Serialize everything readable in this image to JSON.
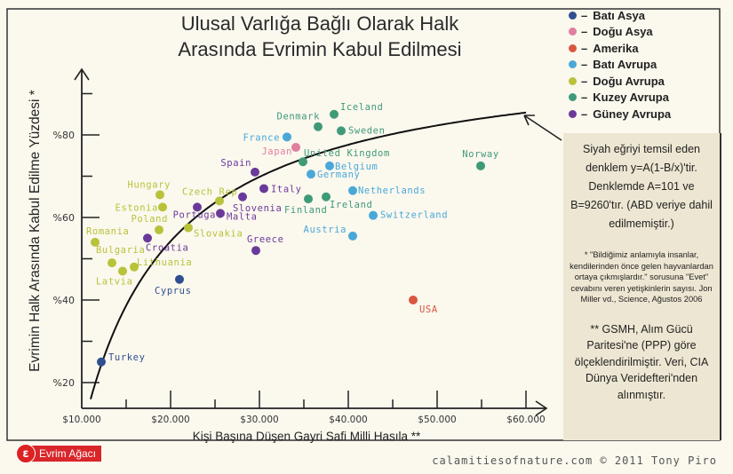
{
  "title_line1": "Ulusal Varlığa Bağlı Olarak Halk",
  "title_line2": "Arasında Evrimin Kabul Edilmesi",
  "legend": [
    {
      "key": "bati_asya",
      "label": "Batı Asya",
      "color": "#2f4f8f"
    },
    {
      "key": "dogu_asya",
      "label": "Doğu Asya",
      "color": "#e07fa0"
    },
    {
      "key": "amerika",
      "label": "Amerika",
      "color": "#d9573f"
    },
    {
      "key": "bati_avrupa",
      "label": "Batı Avrupa",
      "color": "#4aa8d8"
    },
    {
      "key": "dogu_avrupa",
      "label": "Doğu Avrupa",
      "color": "#b8c23a"
    },
    {
      "key": "kuzey_avrupa",
      "label": "Kuzey Avrupa",
      "color": "#3f9a78"
    },
    {
      "key": "guney_avrupa",
      "label": "Güney Avrupa",
      "color": "#6a3a9a"
    }
  ],
  "legend_dash": "–",
  "panel": {
    "equation_note": "Siyah eğriyi temsil eden denklem y=A(1-B/x)'tir. Denklemde A=101 ve B=9260'tır. (ABD veriye dahil edilmemiştir.)",
    "footnote_1": "* \"Bildiğimiz anlamıyla insanlar, kendilerinden önce gelen hayvanlardan ortaya çıkmışlardır.\" sorusuna \"Evet\" cevabını veren yetişkinlerin sayısı. Jon Miller vd., Science, Ağustos 2006",
    "footnote_2": "** GSMH, Alım Gücü Paritesi'ne (PPP) göre ölçeklendirilmiştir. Veri, CIA Dünya Veridefteri'nden alınmıştır."
  },
  "logo_text": "Evrim Ağacı",
  "credit": "calamitiesofnature.com © 2011 Tony Piro",
  "chart_data": {
    "type": "scatter",
    "title": "Ulusal Varlığa Bağlı Olarak Halk Arasında Evrimin Kabul Edilmesi",
    "xlabel": "Kişi Başına Düşen Gayri Safi Milli Hasıla **",
    "ylabel": "Evrimin Halk Arasında Kabul Edilme Yüzdesi *",
    "xlim": [
      10000,
      62000
    ],
    "ylim": [
      14,
      96
    ],
    "x_ticks": [
      10000,
      20000,
      30000,
      40000,
      50000,
      60000
    ],
    "x_tick_labels": [
      "$10.000",
      "$20.000",
      "$30.000",
      "$40.000",
      "$50.000",
      "$60.000"
    ],
    "y_ticks": [
      20,
      40,
      60,
      80
    ],
    "y_tick_labels": [
      "%20",
      "%40",
      "%60",
      "%80"
    ],
    "grid": false,
    "legend_position": "top-right",
    "fit_curve": {
      "equation": "y=A(1-B/x)",
      "A": 101,
      "B": 9260,
      "x_range": [
        10500,
        60000
      ]
    },
    "points": [
      {
        "name": "Turkey",
        "region": "bati_asya",
        "x": 12200,
        "y": 25
      },
      {
        "name": "Cyprus",
        "region": "bati_asya",
        "x": 21000,
        "y": 45
      },
      {
        "name": "USA",
        "region": "amerika",
        "x": 47300,
        "y": 40
      },
      {
        "name": "Latvia",
        "region": "dogu_avrupa",
        "x": 14600,
        "y": 47
      },
      {
        "name": "Bulgaria",
        "region": "dogu_avrupa",
        "x": 13400,
        "y": 49
      },
      {
        "name": "Lithuania",
        "region": "dogu_avrupa",
        "x": 15900,
        "y": 48
      },
      {
        "name": "Romania",
        "region": "dogu_avrupa",
        "x": 11500,
        "y": 54
      },
      {
        "name": "Croatia",
        "region": "guney_avrupa",
        "x": 17400,
        "y": 55
      },
      {
        "name": "Poland",
        "region": "dogu_avrupa",
        "x": 18700,
        "y": 57
      },
      {
        "name": "Estonia",
        "region": "dogu_avrupa",
        "x": 19100,
        "y": 62.5
      },
      {
        "name": "Hungary",
        "region": "dogu_avrupa",
        "x": 18800,
        "y": 65.5
      },
      {
        "name": "Portugal",
        "region": "guney_avrupa",
        "x": 23000,
        "y": 62.5
      },
      {
        "name": "Slovakia",
        "region": "dogu_avrupa",
        "x": 22000,
        "y": 57.5
      },
      {
        "name": "Czech Rep",
        "region": "dogu_avrupa",
        "x": 25500,
        "y": 64
      },
      {
        "name": "Malta",
        "region": "guney_avrupa",
        "x": 25600,
        "y": 61
      },
      {
        "name": "Slovenia",
        "region": "guney_avrupa",
        "x": 28100,
        "y": 65
      },
      {
        "name": "Spain",
        "region": "guney_avrupa",
        "x": 29500,
        "y": 71
      },
      {
        "name": "Italy",
        "region": "guney_avrupa",
        "x": 30500,
        "y": 67
      },
      {
        "name": "Greece",
        "region": "guney_avrupa",
        "x": 29600,
        "y": 52
      },
      {
        "name": "Japan",
        "region": "dogu_asya",
        "x": 34100,
        "y": 77
      },
      {
        "name": "France",
        "region": "bati_avrupa",
        "x": 33100,
        "y": 79.5
      },
      {
        "name": "United Kingdom",
        "region": "kuzey_avrupa",
        "x": 34900,
        "y": 73.5
      },
      {
        "name": "Germany",
        "region": "bati_avrupa",
        "x": 35800,
        "y": 70.5
      },
      {
        "name": "Belgium",
        "region": "bati_avrupa",
        "x": 37900,
        "y": 72.5
      },
      {
        "name": "Finland",
        "region": "kuzey_avrupa",
        "x": 35500,
        "y": 64.5
      },
      {
        "name": "Ireland",
        "region": "kuzey_avrupa",
        "x": 37500,
        "y": 65
      },
      {
        "name": "Netherlands",
        "region": "bati_avrupa",
        "x": 40500,
        "y": 66.5
      },
      {
        "name": "Switzerland",
        "region": "bati_avrupa",
        "x": 42800,
        "y": 60.5
      },
      {
        "name": "Austria",
        "region": "bati_avrupa",
        "x": 40500,
        "y": 55.5
      },
      {
        "name": "Denmark",
        "region": "kuzey_avrupa",
        "x": 36600,
        "y": 82
      },
      {
        "name": "Iceland",
        "region": "kuzey_avrupa",
        "x": 38400,
        "y": 85
      },
      {
        "name": "Sweden",
        "region": "kuzey_avrupa",
        "x": 39200,
        "y": 81
      },
      {
        "name": "Norway",
        "region": "kuzey_avrupa",
        "x": 54900,
        "y": 72.5
      }
    ]
  }
}
